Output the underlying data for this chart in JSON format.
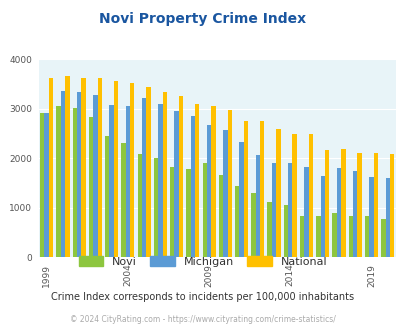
{
  "title": "Novi Property Crime Index",
  "title_color": "#1a56a0",
  "subtitle": "Crime Index corresponds to incidents per 100,000 inhabitants",
  "subtitle_color": "#333333",
  "footer": "© 2024 CityRating.com - https://www.cityrating.com/crime-statistics/",
  "footer_color": "#aaaaaa",
  "years": [
    1999,
    2000,
    2001,
    2002,
    2003,
    2004,
    2005,
    2006,
    2007,
    2008,
    2009,
    2010,
    2011,
    2012,
    2013,
    2014,
    2015,
    2016,
    2017,
    2018,
    2019,
    2020
  ],
  "novi": [
    2920,
    3050,
    3010,
    2840,
    2450,
    2310,
    2080,
    2010,
    1830,
    1780,
    1900,
    1660,
    1450,
    1300,
    1120,
    1050,
    835,
    845,
    900,
    840,
    830,
    780
  ],
  "michigan": [
    2920,
    3370,
    3340,
    3290,
    3080,
    3060,
    3230,
    3090,
    2960,
    2850,
    2680,
    2580,
    2340,
    2060,
    1910,
    1900,
    1820,
    1650,
    1800,
    1750,
    1620,
    1610
  ],
  "national": [
    3620,
    3660,
    3620,
    3620,
    3560,
    3520,
    3440,
    3340,
    3270,
    3100,
    3050,
    2980,
    2750,
    2760,
    2590,
    2500,
    2490,
    2160,
    2200,
    2100,
    2100,
    2090
  ],
  "bar_color_novi": "#8dc63f",
  "bar_color_michigan": "#5b9bd5",
  "bar_color_national": "#ffc000",
  "bg_color": "#e8f4f8",
  "ylim": [
    0,
    4000
  ],
  "yticks": [
    0,
    1000,
    2000,
    3000,
    4000
  ],
  "xtick_labels": [
    "1999",
    "2004",
    "2009",
    "2014",
    "2019"
  ],
  "legend_labels": [
    "Novi",
    "Michigan",
    "National"
  ],
  "bar_width": 0.27,
  "grid_color": "#ffffff"
}
